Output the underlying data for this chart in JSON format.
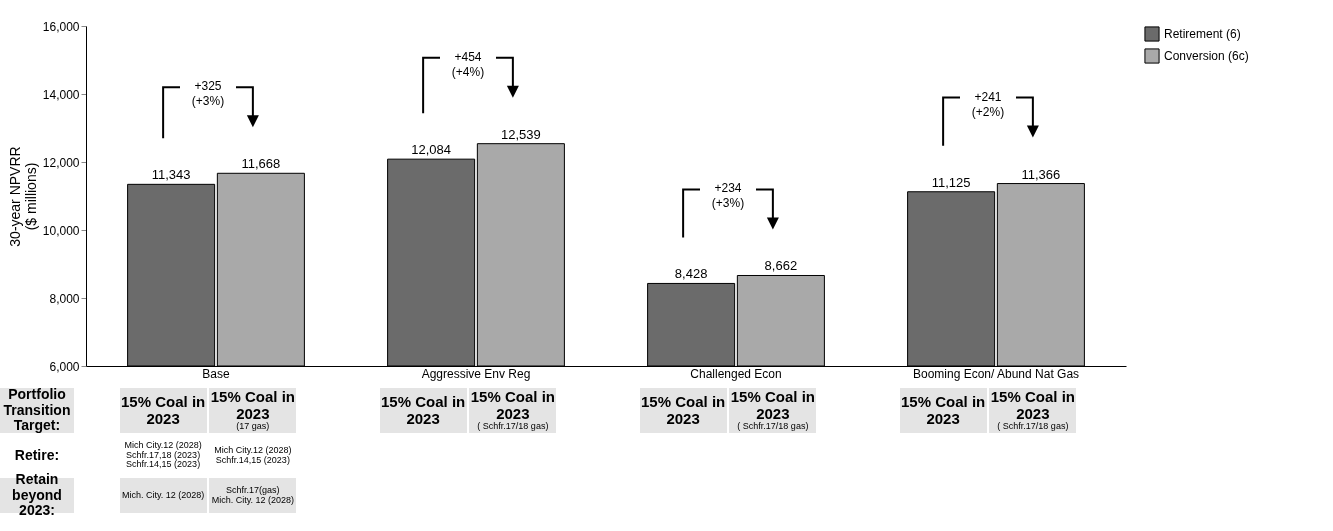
{
  "chart_data": {
    "type": "bar",
    "ylabel": "30-year NPVRR\n($ millions)",
    "categories": [
      "Base",
      "Aggressive Env Reg",
      "Challenged Econ",
      "Booming Econ/ Abund Nat Gas"
    ],
    "series": [
      {
        "name": "Retirement (6)",
        "color": "#6b6b6b",
        "values": [
          11343,
          12084,
          8428,
          11125
        ],
        "value_labels": [
          "11,343",
          "12,084",
          "8,428",
          "11,125"
        ]
      },
      {
        "name": "Conversion (6c)",
        "color": "#a9a9a9",
        "values": [
          11668,
          12539,
          8662,
          11366
        ],
        "value_labels": [
          "11,668",
          "12,539",
          "8,662",
          "11,366"
        ]
      }
    ],
    "ylim": [
      6000,
      16000
    ],
    "yticks": [
      {
        "value": 6000,
        "label": "6,000"
      },
      {
        "value": 8000,
        "label": "8,000"
      },
      {
        "value": 10000,
        "label": "10,000"
      },
      {
        "value": 12000,
        "label": "12,000"
      },
      {
        "value": 14000,
        "label": "14,000"
      },
      {
        "value": 16000,
        "label": "16,000"
      }
    ],
    "legend": "top right",
    "annotations": [
      "+325\n(+3%)",
      "+454\n(+4%)",
      "+234\n(+3%)",
      "+241\n(+2%)",
      "Portfolio\nTransition\nTarget:",
      "Retire:",
      "Retain beyond\n2023:",
      "15% Coal in\n2023",
      "15% Coal in\n2023\n(17 gas)",
      "15% Coal in\n2023",
      "15% Coal in\n2023\n( Schfr.17/18 gas)",
      "15% Coal in\n2023",
      "15% Coal in\n2023\n( Schfr.17/18 gas)",
      "15% Coal in\n2023",
      "15% Coal in\n2023\n( Schfr.17/18 gas)",
      "Mich City.12 (2028)\nSchfr.17,18 (2023)\nSchfr.14,15 (2023)",
      "Mich City.12 (2028)\nSchfr.14,15 (2023)",
      "Mich. City. 12 (2028)",
      "Schfr.17(gas)\nMich. City. 12 (2028)"
    ]
  }
}
